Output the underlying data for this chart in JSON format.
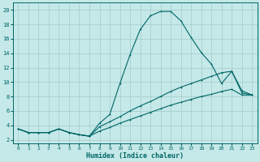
{
  "xlabel": "Humidex (Indice chaleur)",
  "background_color": "#c5e8e8",
  "grid_color": "#a8d0d0",
  "line_color": "#006666",
  "xlim": [
    -0.5,
    23.5
  ],
  "ylim": [
    1.5,
    21.0
  ],
  "xticks": [
    0,
    1,
    2,
    3,
    4,
    5,
    6,
    7,
    8,
    9,
    10,
    11,
    12,
    13,
    14,
    15,
    16,
    17,
    18,
    19,
    20,
    21,
    22,
    23
  ],
  "yticks": [
    2,
    4,
    6,
    8,
    10,
    12,
    14,
    16,
    18,
    20
  ],
  "line1_x": [
    0,
    1,
    2,
    3,
    4,
    5,
    6,
    7,
    8,
    9,
    10,
    11,
    12,
    13,
    14,
    15,
    16,
    17,
    18,
    19,
    20,
    21,
    22,
    23
  ],
  "line1_y": [
    3.5,
    3.0,
    3.0,
    3.0,
    3.5,
    3.0,
    2.7,
    2.5,
    4.3,
    5.5,
    9.8,
    13.8,
    17.3,
    19.2,
    19.8,
    19.8,
    18.5,
    16.2,
    14.1,
    12.5,
    9.8,
    11.5,
    8.5,
    8.2
  ],
  "line2_x": [
    0,
    1,
    2,
    3,
    4,
    5,
    6,
    7,
    8,
    9,
    10,
    11,
    12,
    13,
    14,
    15,
    16,
    17,
    18,
    19,
    20,
    21,
    22,
    23
  ],
  "line2_y": [
    3.5,
    3.0,
    3.0,
    3.0,
    3.5,
    3.0,
    2.7,
    2.5,
    3.8,
    4.5,
    5.2,
    6.0,
    6.7,
    7.3,
    8.0,
    8.7,
    9.3,
    9.8,
    10.3,
    10.8,
    11.3,
    11.5,
    8.8,
    8.2
  ],
  "line3_x": [
    0,
    1,
    2,
    3,
    4,
    5,
    6,
    7,
    8,
    9,
    10,
    11,
    12,
    13,
    14,
    15,
    16,
    17,
    18,
    19,
    20,
    21,
    22,
    23
  ],
  "line3_y": [
    3.5,
    3.0,
    3.0,
    3.0,
    3.5,
    3.0,
    2.7,
    2.5,
    3.2,
    3.7,
    4.3,
    4.8,
    5.3,
    5.8,
    6.3,
    6.8,
    7.2,
    7.6,
    8.0,
    8.3,
    8.7,
    9.0,
    8.2,
    8.2
  ]
}
